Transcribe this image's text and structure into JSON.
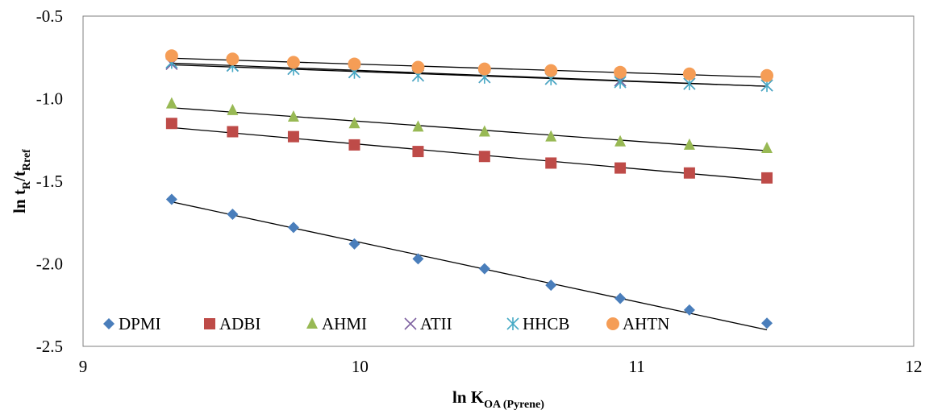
{
  "chart_data": {
    "type": "scatter",
    "title": "",
    "xlabel": {
      "main": "ln K",
      "sub": "OA (Pyrene)"
    },
    "ylabel": {
      "main": "ln t",
      "sub1": "R",
      "mid": "/t",
      "sub2": "Rref"
    },
    "xlim": [
      9,
      12
    ],
    "ylim": [
      -2.5,
      -0.5
    ],
    "x_ticks": [
      "9",
      "10",
      "11",
      "12"
    ],
    "y_ticks": [
      "-0.5",
      "-1.0",
      "-1.5",
      "-2.0",
      "-2.5"
    ],
    "x_tick_values": [
      9,
      10,
      11,
      12
    ],
    "y_tick_values": [
      -0.5,
      -1.0,
      -1.5,
      -2.0,
      -2.5
    ],
    "grid": false,
    "legend_position": "bottom-left-inside",
    "x": [
      9.32,
      9.54,
      9.76,
      9.98,
      10.21,
      10.45,
      10.69,
      10.94,
      11.19,
      11.47
    ],
    "series": [
      {
        "name": "DPMI",
        "marker": "diamond",
        "color": "#4a7ebb",
        "values": [
          -1.61,
          -1.7,
          -1.78,
          -1.88,
          -1.97,
          -2.03,
          -2.13,
          -2.21,
          -2.28,
          -2.36
        ],
        "fit": [
          -1.625,
          -2.4
        ]
      },
      {
        "name": "ADBI",
        "marker": "square",
        "color": "#be4b48",
        "values": [
          -1.15,
          -1.2,
          -1.23,
          -1.28,
          -1.32,
          -1.35,
          -1.39,
          -1.42,
          -1.45,
          -1.48
        ],
        "fit": [
          -1.175,
          -1.495
        ]
      },
      {
        "name": "AHMI",
        "marker": "triangle",
        "color": "#98b954",
        "values": [
          -1.03,
          -1.07,
          -1.11,
          -1.15,
          -1.17,
          -1.2,
          -1.23,
          -1.26,
          -1.28,
          -1.3
        ],
        "fit": [
          -1.055,
          -1.315
        ]
      },
      {
        "name": "ATII",
        "marker": "x",
        "color": "#7d60a0",
        "values": [
          -0.79,
          -0.8,
          -0.82,
          -0.84,
          -0.86,
          -0.87,
          -0.88,
          -0.89,
          -0.91,
          -0.92
        ],
        "fit": [
          -0.795,
          -0.925
        ]
      },
      {
        "name": "HHCB",
        "marker": "star",
        "color": "#46aac5",
        "values": [
          -0.78,
          -0.8,
          -0.82,
          -0.84,
          -0.86,
          -0.87,
          -0.88,
          -0.9,
          -0.91,
          -0.92
        ],
        "fit": [
          -0.785,
          -0.925
        ]
      },
      {
        "name": "AHTN",
        "marker": "circle",
        "color": "#f59d56",
        "values": [
          -0.74,
          -0.76,
          -0.78,
          -0.79,
          -0.81,
          -0.82,
          -0.83,
          -0.84,
          -0.85,
          -0.86
        ],
        "fit": [
          -0.755,
          -0.87
        ]
      }
    ]
  }
}
